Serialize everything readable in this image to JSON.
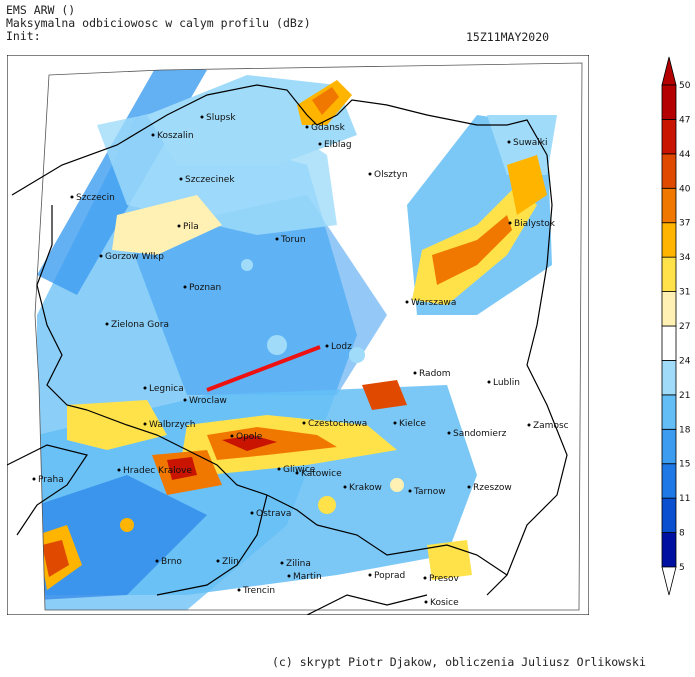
{
  "header": {
    "model": "EMS ARW ()",
    "title": "Maksymalna odbiciowosc w calym profilu (dBz)",
    "init_label": "Init:",
    "valid_time": "15Z11MAY2020"
  },
  "credit": "(c) skrypt Piotr Djakow, obliczenia Juliusz Orlikowski",
  "colors": {
    "scale": [
      "#0010a0",
      "#0a4fd0",
      "#1e78e6",
      "#3c9cf0",
      "#64bef6",
      "#a0dcfa",
      "#ffffff",
      "#fff0b4",
      "#ffe24a",
      "#ffb400",
      "#f07800",
      "#e04a00",
      "#c81400",
      "#b40000"
    ]
  },
  "legend": {
    "ticks": [
      "5",
      "8",
      "11",
      "15",
      "18",
      "21",
      "24",
      "27",
      "31",
      "34",
      "37",
      "40",
      "44",
      "47",
      "50"
    ]
  },
  "cities": [
    {
      "name": "Slupsk"
    },
    {
      "name": "Koszalin"
    },
    {
      "name": "Gdansk"
    },
    {
      "name": "Elblag"
    },
    {
      "name": "Suwalki"
    },
    {
      "name": "Szczecinek"
    },
    {
      "name": "Olsztyn"
    },
    {
      "name": "Szczecin"
    },
    {
      "name": "Bialystok"
    },
    {
      "name": "Pila"
    },
    {
      "name": "Torun"
    },
    {
      "name": "Gorzow Wlkp"
    },
    {
      "name": "Poznan"
    },
    {
      "name": "Warszawa"
    },
    {
      "name": "Zielona Gora"
    },
    {
      "name": "Lodz"
    },
    {
      "name": "Radom"
    },
    {
      "name": "Lublin"
    },
    {
      "name": "Legnica"
    },
    {
      "name": "Wroclaw"
    },
    {
      "name": "Walbrzych"
    },
    {
      "name": "Opole"
    },
    {
      "name": "Czestochowa"
    },
    {
      "name": "Kielce"
    },
    {
      "name": "Sandomierz"
    },
    {
      "name": "Zamosc"
    },
    {
      "name": "Praha"
    },
    {
      "name": "Hradec Kralove"
    },
    {
      "name": "Gliwice"
    },
    {
      "name": "Katowice"
    },
    {
      "name": "Rzeszow"
    },
    {
      "name": "Krakow"
    },
    {
      "name": "Tarnow"
    },
    {
      "name": "Ostrava"
    },
    {
      "name": "Brno"
    },
    {
      "name": "Zlin"
    },
    {
      "name": "Zilina"
    },
    {
      "name": "Martin"
    },
    {
      "name": "Poprad"
    },
    {
      "name": "Presov"
    },
    {
      "name": "Trencin"
    },
    {
      "name": "Kosice"
    }
  ]
}
